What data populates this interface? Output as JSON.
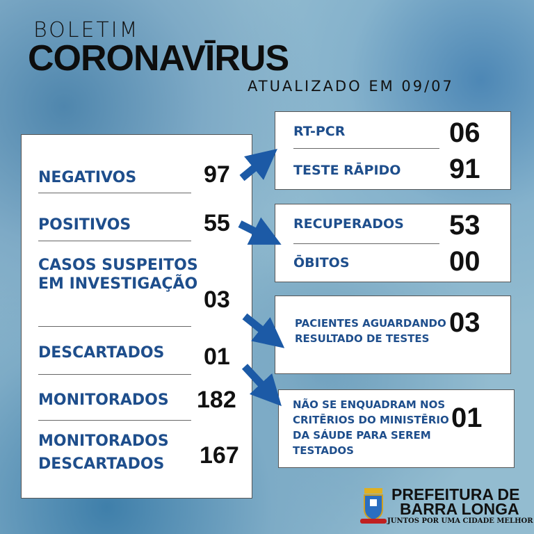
{
  "header": {
    "overline": "BOLETIM",
    "title": "CORONAVĪRUS",
    "updated": "ATUALIZADO EM 09/07"
  },
  "left": [
    {
      "label": "NEGATIVOS",
      "value": "97"
    },
    {
      "label": "POSITIVOS",
      "value": "55"
    },
    {
      "label": "CASOS SUSPEITOS EM INVESTIGAÇÃO",
      "value": "03"
    },
    {
      "label": "DESCARTADOS",
      "value": "01"
    },
    {
      "label": "MONITORADOS",
      "value": "182"
    },
    {
      "label": "MONITORADOS DESCARTADOS",
      "value": "167"
    }
  ],
  "negatives_breakdown": [
    {
      "label": "RT-PCR",
      "value": "06"
    },
    {
      "label": "TESTE RĀPIDO",
      "value": "91"
    }
  ],
  "positives_breakdown": [
    {
      "label": "RECUPERADOS",
      "value": "53"
    },
    {
      "label": "ŌBITOS",
      "value": "00"
    }
  ],
  "awaiting": {
    "label": "PACIENTES AGUARDANDO RESULTADO DE TESTES",
    "value": "03"
  },
  "not_eligible": {
    "label": "NÃO SE ENQUADRAM NOS CRITĒRIOS DO MINISTĒRIO DA SÁUDE PARA SEREM TESTADOS",
    "value": "01"
  },
  "footer": {
    "line1": "PREFEITURA DE",
    "line2": "BARRA LONGA",
    "slogan": "JUNTOS POR UMA CIDADE MELHOR"
  },
  "colors": {
    "label": "#1e4e8c",
    "arrow": "#1c5aa6"
  }
}
